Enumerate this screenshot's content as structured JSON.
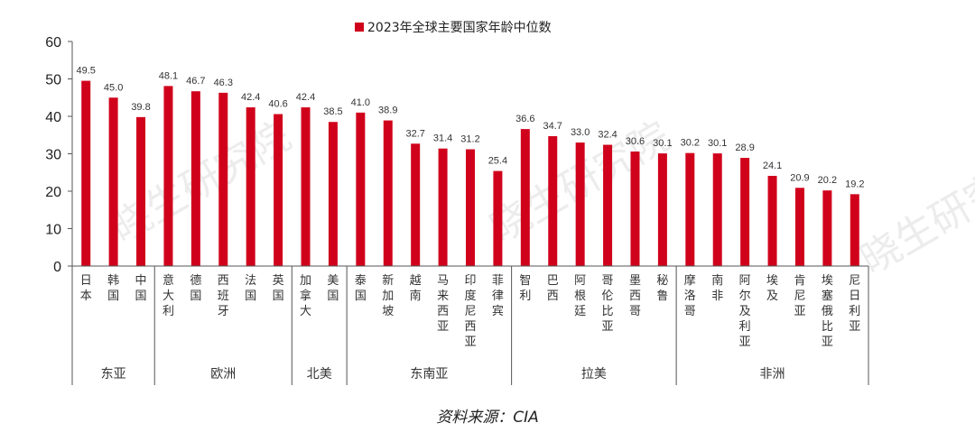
{
  "watermark": "晓生研究院",
  "source": "资料来源：CIA",
  "colors": {
    "bar": "#d0021b",
    "axis": "#555555",
    "text": "#222222"
  },
  "chart_data": {
    "type": "bar",
    "legend": {
      "label": "2023年全球主要国家年龄中位数",
      "placement": "top-center"
    },
    "ylim": [
      0,
      60
    ],
    "yticks": [
      0,
      10,
      20,
      30,
      40,
      50,
      60
    ],
    "grid": false,
    "categories": [
      "日本",
      "韩国",
      "中国",
      "意大利",
      "德国",
      "西班牙",
      "法国",
      "英国",
      "加拿大",
      "美国",
      "泰国",
      "新加坡",
      "越南",
      "马来西亚",
      "印度尼西亚",
      "菲律宾",
      "智利",
      "巴西",
      "阿根廷",
      "哥伦比亚",
      "墨西哥",
      "秘鲁",
      "摩洛哥",
      "南非",
      "阿尔及利亚",
      "埃及",
      "肯尼亚",
      "埃塞俄比亚",
      "尼日利亚"
    ],
    "values": [
      49.5,
      45.0,
      39.8,
      48.1,
      46.7,
      46.3,
      42.4,
      40.6,
      42.4,
      38.5,
      41.0,
      38.9,
      32.7,
      31.4,
      31.2,
      25.4,
      36.6,
      34.7,
      33.0,
      32.4,
      30.6,
      30.1,
      30.2,
      30.1,
      28.9,
      24.1,
      20.9,
      20.2,
      19.2
    ],
    "data_labels": [
      "49.5",
      "45.0",
      "39.8",
      "48.1",
      "46.7",
      "46.3",
      "42.4",
      "40.6",
      "42.4",
      "38.5",
      "41.0",
      "38.9",
      "32.7",
      "31.4",
      "31.2",
      "25.4",
      "36.6",
      "34.7",
      "33.0",
      "32.4",
      "30.6",
      "30.1",
      "30.2",
      "30.1",
      "28.9",
      "24.1",
      "20.9",
      "20.2",
      "19.2"
    ],
    "groups": [
      {
        "label": "东亚",
        "count": 3
      },
      {
        "label": "欧洲",
        "count": 5
      },
      {
        "label": "北美",
        "count": 2
      },
      {
        "label": "东南亚",
        "count": 6
      },
      {
        "label": "拉美",
        "count": 6
      },
      {
        "label": "非洲",
        "count": 7
      }
    ]
  }
}
